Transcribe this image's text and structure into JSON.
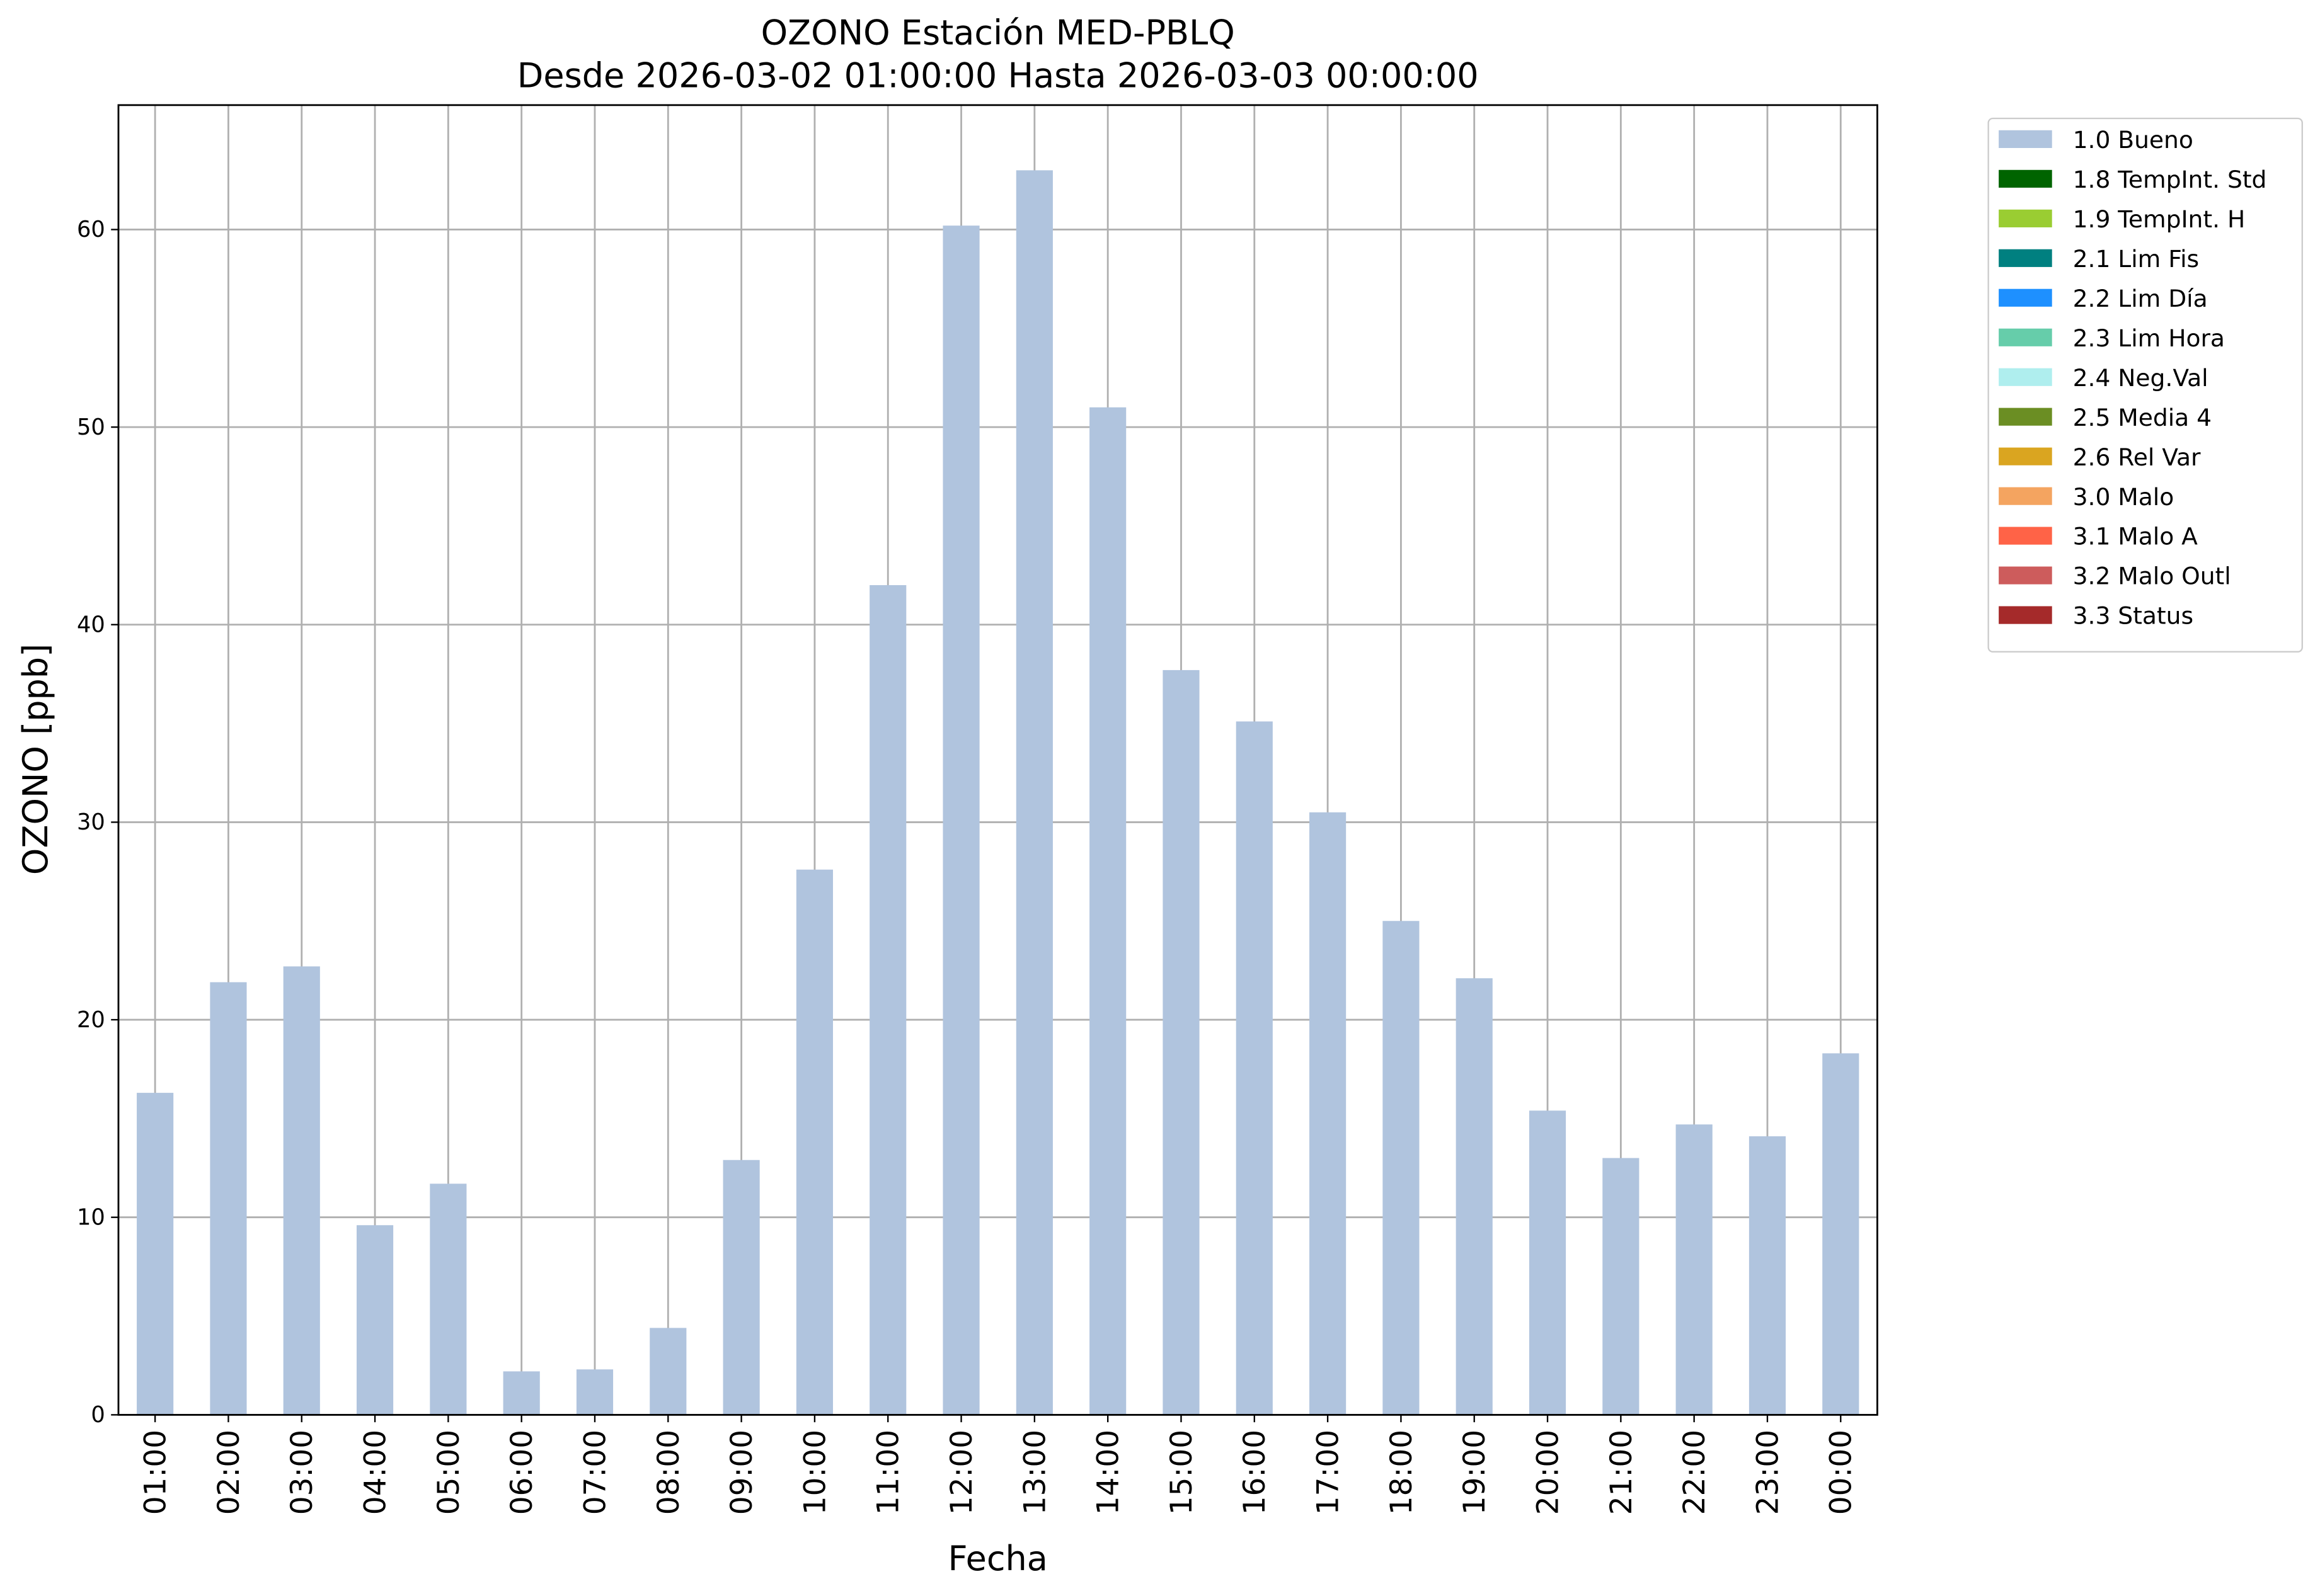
{
  "chart_data": {
    "type": "bar",
    "title": "OZONO Estación MED-PBLQ",
    "subtitle": "Desde 2026-03-02 01:00:00 Hasta 2026-03-03 00:00:00",
    "x_label": "Fecha",
    "y_label": "OZONO [ppb]",
    "categories": [
      "01:00",
      "02:00",
      "03:00",
      "04:00",
      "05:00",
      "06:00",
      "07:00",
      "08:00",
      "09:00",
      "10:00",
      "11:00",
      "12:00",
      "13:00",
      "14:00",
      "15:00",
      "16:00",
      "17:00",
      "18:00",
      "19:00",
      "20:00",
      "21:00",
      "22:00",
      "23:00",
      "00:00"
    ],
    "series": [
      {
        "name": "1.0 Bueno",
        "color": "#b0c4de",
        "values": [
          16.3,
          21.9,
          22.7,
          9.6,
          11.7,
          2.2,
          2.3,
          4.4,
          12.9,
          27.6,
          42.0,
          60.2,
          63.0,
          51.0,
          37.7,
          35.1,
          30.5,
          25.0,
          22.1,
          15.4,
          13.0,
          14.7,
          14.1,
          18.3
        ]
      },
      {
        "name": "1.8 TempInt. Std",
        "color": "#006400"
      },
      {
        "name": "1.9 TempInt. H",
        "color": "#9acd32"
      },
      {
        "name": "2.1 Lim Fis",
        "color": "#008080"
      },
      {
        "name": "2.2 Lim Día",
        "color": "#1e90ff"
      },
      {
        "name": "2.3 Lim Hora",
        "color": "#66cdaa"
      },
      {
        "name": "2.4 Neg.Val",
        "color": "#afeeee"
      },
      {
        "name": "2.5 Media 4",
        "color": "#6b8e23"
      },
      {
        "name": "2.6 Rel Var",
        "color": "#daa520"
      },
      {
        "name": "3.0 Malo",
        "color": "#f4a460"
      },
      {
        "name": "3.1 Malo A",
        "color": "#ff6347"
      },
      {
        "name": "3.2 Malo Outl",
        "color": "#cd5c5c"
      },
      {
        "name": "3.3 Status",
        "color": "#a52a2a"
      }
    ],
    "ylim": [
      0,
      66.3
    ],
    "yticks": [
      0,
      10,
      20,
      30,
      40,
      50,
      60
    ],
    "grid": true,
    "legend": "outside-upper-right"
  }
}
